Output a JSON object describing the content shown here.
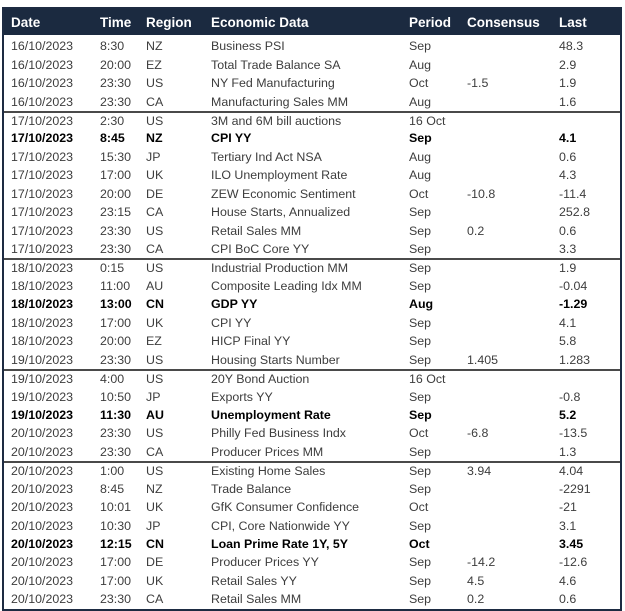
{
  "table": {
    "columns": [
      {
        "label": "Date"
      },
      {
        "label": "Time"
      },
      {
        "label": "Region"
      },
      {
        "label": "Economic Data"
      },
      {
        "label": "Period"
      },
      {
        "label": "Consensus"
      },
      {
        "label": "Last"
      }
    ],
    "rows": [
      {
        "date": "16/10/2023",
        "time": "8:30",
        "region": "NZ",
        "event": "Business PSI",
        "period": "Sep",
        "consensus": "",
        "last": "48.3",
        "bold": false,
        "separator_before": false
      },
      {
        "date": "16/10/2023",
        "time": "20:00",
        "region": "EZ",
        "event": "Total Trade Balance SA",
        "period": "Aug",
        "consensus": "",
        "last": "2.9",
        "bold": false,
        "separator_before": false
      },
      {
        "date": "16/10/2023",
        "time": "23:30",
        "region": "US",
        "event": "NY Fed Manufacturing",
        "period": "Oct",
        "consensus": "-1.5",
        "last": "1.9",
        "bold": false,
        "separator_before": false
      },
      {
        "date": "16/10/2023",
        "time": "23:30",
        "region": "CA",
        "event": "Manufacturing Sales MM",
        "period": "Aug",
        "consensus": "",
        "last": "1.6",
        "bold": false,
        "separator_before": false
      },
      {
        "date": "17/10/2023",
        "time": "2:30",
        "region": "US",
        "event": "3M and 6M bill auctions",
        "period": "16 Oct",
        "consensus": "",
        "last": "",
        "bold": false,
        "separator_before": true
      },
      {
        "date": "17/10/2023",
        "time": "8:45",
        "region": "NZ",
        "event": "CPI YY",
        "period": "Sep",
        "consensus": "",
        "last": "4.1",
        "bold": true,
        "separator_before": false
      },
      {
        "date": "17/10/2023",
        "time": "15:30",
        "region": "JP",
        "event": "Tertiary Ind Act NSA",
        "period": "Aug",
        "consensus": "",
        "last": "0.6",
        "bold": false,
        "separator_before": false
      },
      {
        "date": "17/10/2023",
        "time": "17:00",
        "region": "UK",
        "event": "ILO Unemployment Rate",
        "period": "Aug",
        "consensus": "",
        "last": "4.3",
        "bold": false,
        "separator_before": false
      },
      {
        "date": "17/10/2023",
        "time": "20:00",
        "region": "DE",
        "event": "ZEW Economic Sentiment",
        "period": "Oct",
        "consensus": "-10.8",
        "last": "-11.4",
        "bold": false,
        "separator_before": false
      },
      {
        "date": "17/10/2023",
        "time": "23:15",
        "region": "CA",
        "event": "House Starts, Annualized",
        "period": "Sep",
        "consensus": "",
        "last": "252.8",
        "bold": false,
        "separator_before": false
      },
      {
        "date": "17/10/2023",
        "time": "23:30",
        "region": "US",
        "event": "Retail Sales MM",
        "period": "Sep",
        "consensus": "0.2",
        "last": "0.6",
        "bold": false,
        "separator_before": false
      },
      {
        "date": "17/10/2023",
        "time": "23:30",
        "region": "CA",
        "event": "CPI BoC Core YY",
        "period": "Sep",
        "consensus": "",
        "last": "3.3",
        "bold": false,
        "separator_before": false
      },
      {
        "date": "18/10/2023",
        "time": "0:15",
        "region": "US",
        "event": "Industrial Production MM",
        "period": "Sep",
        "consensus": "",
        "last": "1.9",
        "bold": false,
        "separator_before": true
      },
      {
        "date": "18/10/2023",
        "time": "11:00",
        "region": "AU",
        "event": "Composite Leading Idx MM",
        "period": "Sep",
        "consensus": "",
        "last": "-0.04",
        "bold": false,
        "separator_before": false
      },
      {
        "date": "18/10/2023",
        "time": "13:00",
        "region": "CN",
        "event": "GDP YY",
        "period": "Aug",
        "consensus": "",
        "last": "-1.29",
        "bold": true,
        "separator_before": false
      },
      {
        "date": "18/10/2023",
        "time": "17:00",
        "region": "UK",
        "event": "CPI YY",
        "period": "Sep",
        "consensus": "",
        "last": "4.1",
        "bold": false,
        "separator_before": false
      },
      {
        "date": "18/10/2023",
        "time": "20:00",
        "region": "EZ",
        "event": "HICP Final YY",
        "period": "Sep",
        "consensus": "",
        "last": "5.8",
        "bold": false,
        "separator_before": false
      },
      {
        "date": "19/10/2023",
        "time": "23:30",
        "region": "US",
        "event": "Housing Starts Number",
        "period": "Sep",
        "consensus": "1.405",
        "last": "1.283",
        "bold": false,
        "separator_before": false
      },
      {
        "date": "19/10/2023",
        "time": "4:00",
        "region": "US",
        "event": "20Y Bond Auction",
        "period": "16 Oct",
        "consensus": "",
        "last": "",
        "bold": false,
        "separator_before": true
      },
      {
        "date": "19/10/2023",
        "time": "10:50",
        "region": "JP",
        "event": "Exports YY",
        "period": "Sep",
        "consensus": "",
        "last": "-0.8",
        "bold": false,
        "separator_before": false
      },
      {
        "date": "19/10/2023",
        "time": "11:30",
        "region": "AU",
        "event": "Unemployment Rate",
        "period": "Sep",
        "consensus": "",
        "last": "5.2",
        "bold": true,
        "separator_before": false
      },
      {
        "date": "20/10/2023",
        "time": "23:30",
        "region": "US",
        "event": "Philly Fed Business Indx",
        "period": "Oct",
        "consensus": "-6.8",
        "last": "-13.5",
        "bold": false,
        "separator_before": false
      },
      {
        "date": "20/10/2023",
        "time": "23:30",
        "region": "CA",
        "event": "Producer Prices MM",
        "period": "Sep",
        "consensus": "",
        "last": "1.3",
        "bold": false,
        "separator_before": false
      },
      {
        "date": "20/10/2023",
        "time": "1:00",
        "region": "US",
        "event": "Existing Home Sales",
        "period": "Sep",
        "consensus": "3.94",
        "last": "4.04",
        "bold": false,
        "separator_before": true
      },
      {
        "date": "20/10/2023",
        "time": "8:45",
        "region": "NZ",
        "event": "Trade Balance",
        "period": "Sep",
        "consensus": "",
        "last": "-2291",
        "bold": false,
        "separator_before": false
      },
      {
        "date": "20/10/2023",
        "time": "10:01",
        "region": "UK",
        "event": "GfK Consumer Confidence",
        "period": "Oct",
        "consensus": "",
        "last": "-21",
        "bold": false,
        "separator_before": false
      },
      {
        "date": "20/10/2023",
        "time": "10:30",
        "region": "JP",
        "event": "CPI, Core Nationwide YY",
        "period": "Sep",
        "consensus": "",
        "last": "3.1",
        "bold": false,
        "separator_before": false
      },
      {
        "date": "20/10/2023",
        "time": "12:15",
        "region": "CN",
        "event": "Loan Prime Rate 1Y, 5Y",
        "period": "Oct",
        "consensus": "",
        "last": "3.45",
        "bold": true,
        "separator_before": false
      },
      {
        "date": "20/10/2023",
        "time": "17:00",
        "region": "DE",
        "event": "Producer Prices YY",
        "period": "Sep",
        "consensus": "-14.2",
        "last": "-12.6",
        "bold": false,
        "separator_before": false
      },
      {
        "date": "20/10/2023",
        "time": "17:00",
        "region": "UK",
        "event": "Retail Sales YY",
        "period": "Sep",
        "consensus": "4.5",
        "last": "4.6",
        "bold": false,
        "separator_before": false
      },
      {
        "date": "20/10/2023",
        "time": "23:30",
        "region": "CA",
        "event": "Retail Sales MM",
        "period": "Sep",
        "consensus": "0.2",
        "last": "0.6",
        "bold": false,
        "separator_before": false
      }
    ]
  },
  "colors": {
    "header_bg": "#1b2a40",
    "header_text": "#ffffff",
    "row_text": "#3d3d3d",
    "bold_text": "#000000",
    "border": "#1d2b42",
    "separator": "#4a4a4a"
  }
}
